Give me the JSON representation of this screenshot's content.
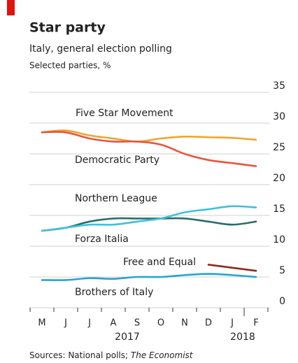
{
  "chart_data": {
    "type": "line",
    "title": "Star party",
    "subtitle": "Italy, general election polling",
    "unit_label": "Selected parties, %",
    "categories": [
      "M",
      "J",
      "J",
      "A",
      "S",
      "O",
      "N",
      "D",
      "J",
      "F"
    ],
    "x_group_labels": [
      "2017",
      "2018"
    ],
    "series": [
      {
        "name": "Five Star Movement",
        "color": "#f0a431",
        "values": [
          28.5,
          28.8,
          28,
          27.5,
          27,
          27.5,
          27.8,
          27.7,
          27.6,
          27.3
        ]
      },
      {
        "name": "Democratic Party",
        "color": "#e9553d",
        "values": [
          28.5,
          28.5,
          27.5,
          27,
          27,
          26.5,
          25,
          24,
          23.5,
          23
        ]
      },
      {
        "name": "Northern League",
        "color": "#2a6e6c",
        "values": [
          12.5,
          13,
          14,
          14.5,
          14.5,
          14.5,
          14.5,
          14,
          13.5,
          14
        ]
      },
      {
        "name": "Forza Italia",
        "color": "#3ec0da",
        "values": [
          12.5,
          13,
          13.5,
          13.5,
          14,
          14.5,
          15.5,
          16,
          16.5,
          16.3
        ]
      },
      {
        "name": "Free and Equal",
        "color": "#8c2b1b",
        "values": [
          null,
          null,
          null,
          null,
          null,
          null,
          null,
          7,
          6.5,
          6
        ]
      },
      {
        "name": "Brothers of Italy",
        "color": "#27a3d6",
        "values": [
          4.5,
          4.5,
          4.8,
          4.7,
          5,
          5,
          5.3,
          5.5,
          5.3,
          5
        ]
      }
    ],
    "ylim": [
      0,
      35
    ],
    "yticks": [
      0,
      5,
      10,
      15,
      20,
      25,
      30,
      35
    ],
    "grid": true,
    "source": {
      "text": "Sources: National polls;",
      "emphasis": "The Economist"
    }
  }
}
